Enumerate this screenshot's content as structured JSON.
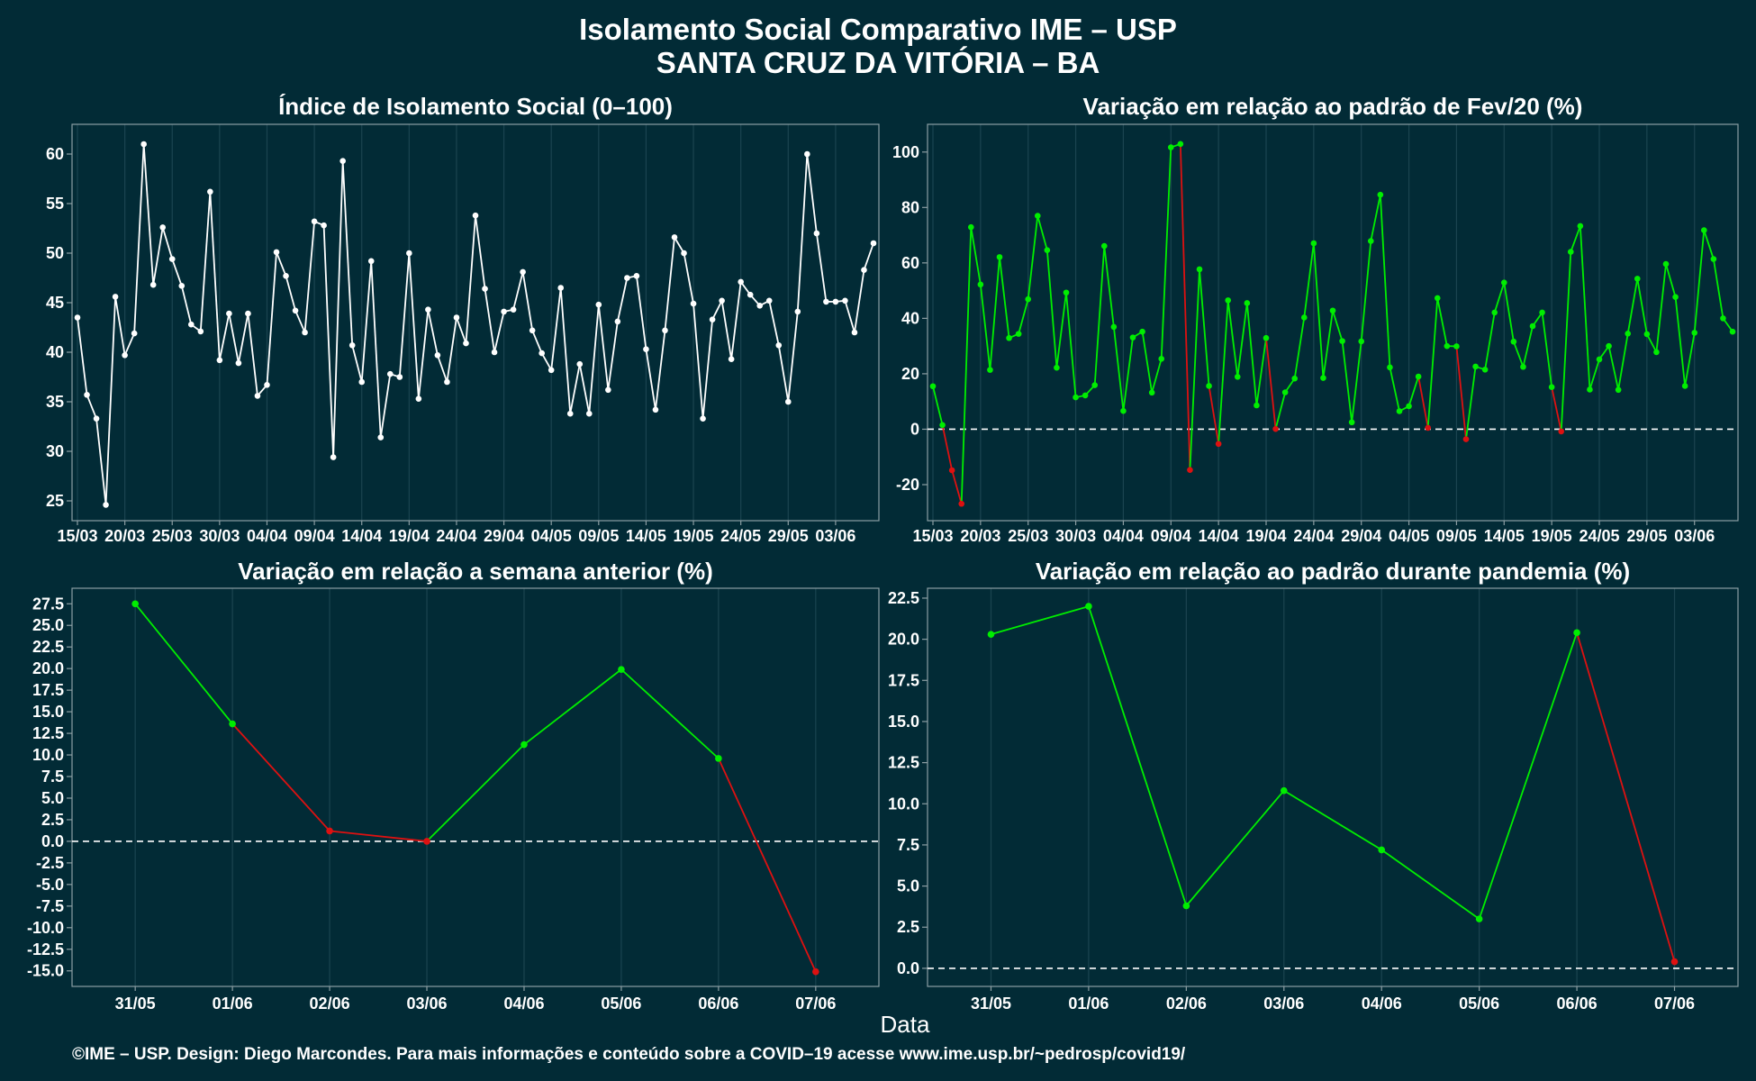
{
  "page": {
    "title_line1": "Isolamento Social Comparativo IME – USP",
    "title_line2": "SANTA CRUZ DA VITÓRIA – BA",
    "xlabel": "Data",
    "footer": "©IME – USP. Design: Diego Marcondes. Para mais informações e conteúdo sobre a COVID–19 acesse www.ime.usp.br/~pedrosp/covid19/"
  },
  "colors": {
    "background": "#022b36",
    "white_series": "#ffffff",
    "positive": "#00ee00",
    "negative": "#dd1111",
    "grid": "#1b4450",
    "frame": "#8c9ea3"
  },
  "chart_data": [
    {
      "id": "indice",
      "type": "line",
      "title": "Índice de Isolamento Social (0–100)",
      "x_ticks": [
        "15/03",
        "20/03",
        "25/03",
        "30/03",
        "04/04",
        "09/04",
        "14/04",
        "19/04",
        "24/04",
        "29/04",
        "04/05",
        "09/05",
        "14/05",
        "19/05",
        "24/05",
        "29/05",
        "03/06"
      ],
      "ylim": [
        23,
        63
      ],
      "y_ticks": [
        25,
        30,
        35,
        40,
        45,
        50,
        55,
        60
      ],
      "colored": false,
      "zero_line": false,
      "values": [
        43.5,
        35.7,
        33.3,
        24.6,
        45.6,
        39.7,
        41.9,
        61.0,
        46.8,
        52.6,
        49.4,
        46.7,
        42.8,
        42.1,
        56.2,
        39.2,
        43.9,
        38.9,
        43.9,
        35.6,
        36.7,
        50.1,
        47.7,
        44.2,
        42.0,
        53.2,
        52.8,
        29.4,
        59.3,
        40.7,
        37.0,
        49.2,
        31.4,
        37.8,
        37.5,
        50.0,
        35.3,
        44.3,
        39.7,
        37.0,
        43.5,
        40.9,
        53.8,
        46.4,
        40.0,
        44.1,
        44.3,
        48.1,
        42.2,
        39.9,
        38.2,
        46.5,
        33.8,
        38.8,
        33.8,
        44.8,
        36.2,
        43.1,
        47.5,
        47.7,
        40.3,
        34.2,
        42.2,
        51.6,
        50.0,
        44.9,
        33.3,
        43.3,
        45.2,
        39.3,
        47.1,
        45.8,
        44.7,
        45.2,
        40.7,
        35.0,
        44.1,
        60.0,
        52.0,
        45.1,
        45.1,
        45.2,
        42.0,
        48.3,
        51.0
      ]
    },
    {
      "id": "fev20",
      "type": "line",
      "title": "Variação em relação ao padrão de Fev/20 (%)",
      "x_ticks": [
        "15/03",
        "20/03",
        "25/03",
        "30/03",
        "04/04",
        "09/04",
        "14/04",
        "19/04",
        "24/04",
        "29/04",
        "04/05",
        "09/05",
        "14/05",
        "19/05",
        "24/05",
        "29/05",
        "03/06"
      ],
      "ylim": [
        -33,
        110
      ],
      "y_ticks": [
        -20,
        0,
        20,
        40,
        60,
        80,
        100
      ],
      "colored": true,
      "zero_line": true,
      "values": [
        15.5,
        1.5,
        -14.8,
        -26.9,
        72.9,
        52.2,
        21.4,
        62.1,
        32.9,
        34.4,
        46.9,
        77.0,
        64.6,
        22.2,
        49.3,
        11.5,
        12.2,
        15.9,
        66.1,
        36.9,
        6.6,
        33.1,
        35.2,
        13.2,
        25.4,
        101.7,
        102.9,
        -14.7,
        57.7,
        15.6,
        -5.3,
        46.5,
        18.9,
        45.5,
        8.6,
        32.9,
        0.1,
        13.3,
        18.3,
        40.3,
        67.1,
        18.5,
        42.8,
        31.8,
        2.5,
        31.7,
        67.9,
        84.6,
        22.3,
        6.5,
        8.3,
        19.0,
        0.5,
        47.3,
        30.0,
        29.9,
        -3.6,
        22.6,
        21.5,
        42.1,
        52.9,
        31.6,
        22.5,
        37.2,
        42.1,
        15.2,
        -0.8,
        64.0,
        73.3,
        14.3,
        25.2,
        30.0,
        14.2,
        34.5,
        54.3,
        34.3,
        27.8,
        59.6,
        47.7,
        15.6,
        34.8,
        71.8,
        61.4,
        40.0,
        35.2
      ]
    },
    {
      "id": "semana",
      "type": "line",
      "title": "Variação em relação a semana anterior (%)",
      "categories": [
        "31/05",
        "01/06",
        "02/06",
        "03/06",
        "04/06",
        "05/06",
        "06/06",
        "07/06"
      ],
      "ylim": [
        -16.8,
        29.3
      ],
      "y_ticks": [
        -15.0,
        -12.5,
        -10.0,
        -7.5,
        -5.0,
        -2.5,
        0.0,
        2.5,
        5.0,
        7.5,
        10.0,
        12.5,
        15.0,
        17.5,
        20.0,
        22.5,
        25.0,
        27.5
      ],
      "colored": true,
      "zero_line": true,
      "values": [
        27.5,
        13.6,
        1.2,
        0.0,
        11.2,
        19.9,
        9.6,
        -15.1
      ]
    },
    {
      "id": "pandemia",
      "type": "line",
      "title": "Variação em relação ao padrão durante pandemia (%)",
      "categories": [
        "31/05",
        "01/06",
        "02/06",
        "03/06",
        "04/06",
        "05/06",
        "06/06",
        "07/06"
      ],
      "ylim": [
        -1.1,
        23.1
      ],
      "y_ticks": [
        0.0,
        2.5,
        5.0,
        7.5,
        10.0,
        12.5,
        15.0,
        17.5,
        20.0,
        22.5
      ],
      "colored": true,
      "zero_line": true,
      "values": [
        20.3,
        22.0,
        3.8,
        10.8,
        7.2,
        3.0,
        20.4,
        0.4
      ]
    }
  ]
}
